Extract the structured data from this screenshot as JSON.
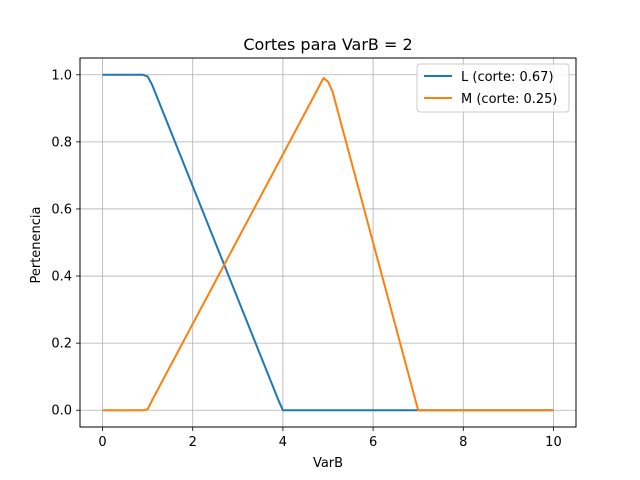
{
  "chart_data": {
    "type": "line",
    "title": "Cortes para VarB = 2",
    "xlabel": "VarB",
    "ylabel": "Pertenencia",
    "xlim": [
      -0.5,
      10.5
    ],
    "ylim": [
      -0.05,
      1.05
    ],
    "xticks": [
      0,
      2,
      4,
      6,
      8,
      10
    ],
    "yticks": [
      0.0,
      0.2,
      0.4,
      0.6,
      0.8,
      1.0
    ],
    "xtick_labels": [
      "0",
      "2",
      "4",
      "6",
      "8",
      "10"
    ],
    "ytick_labels": [
      "0.0",
      "0.2",
      "0.4",
      "0.6",
      "0.8",
      "1.0"
    ],
    "grid": true,
    "legend_position": "top-right",
    "series": [
      {
        "name": "L (corte: 0.67)",
        "color": "#1f77b4",
        "x": [
          0,
          0.9,
          1.0,
          1.1,
          3.9,
          4.0,
          10
        ],
        "y": [
          1.0,
          1.0,
          0.995,
          0.97,
          0.03,
          0.0,
          0.0
        ]
      },
      {
        "name": "M (corte: 0.25)",
        "color": "#ff7f0e",
        "x": [
          0,
          0.9,
          1.0,
          1.1,
          4.9,
          5.0,
          5.1,
          6.9,
          7.0,
          10
        ],
        "y": [
          0.0,
          0.0,
          0.003,
          0.03,
          0.99,
          0.98,
          0.95,
          0.05,
          0.0,
          0.0
        ]
      }
    ]
  }
}
